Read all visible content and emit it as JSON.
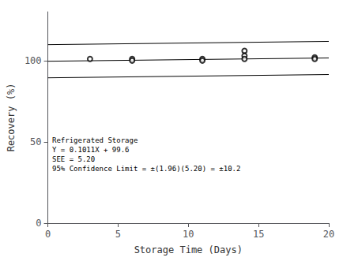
{
  "chart_data": {
    "type": "scatter",
    "xlabel": "Storage Time (Days)",
    "ylabel": "Recovery (%)",
    "annotation": [
      "Refrigerated Storage",
      "Y = 0.1011X + 99.6",
      "SEE = 5.20",
      "95% Confidence Limit = ±(1.96)(5.20) = ±10.2"
    ],
    "series": [
      {
        "type": "scatter",
        "color": "#000000",
        "marker": "circle",
        "x": [
          3,
          6,
          6,
          11,
          11,
          14,
          14,
          14,
          19,
          19
        ],
        "values": [
          101,
          101,
          100,
          101,
          100,
          106,
          103,
          101,
          102,
          101
        ]
      },
      {
        "type": "line",
        "color": "#000000",
        "x": [
          0,
          20
        ],
        "values": [
          99.6,
          101.622
        ]
      },
      {
        "type": "line",
        "color": "#000000",
        "x": [
          0,
          20
        ],
        "values": [
          109.8,
          111.822
        ]
      },
      {
        "type": "line",
        "color": "#000000",
        "x": [
          0,
          20
        ],
        "values": [
          89.4,
          91.422
        ]
      }
    ],
    "xlim": [
      0,
      20
    ],
    "ylim": [
      0,
      130
    ],
    "xticks": [
      0,
      5,
      10,
      15,
      20
    ],
    "yticks": [
      0,
      50,
      100
    ],
    "grid": false
  }
}
